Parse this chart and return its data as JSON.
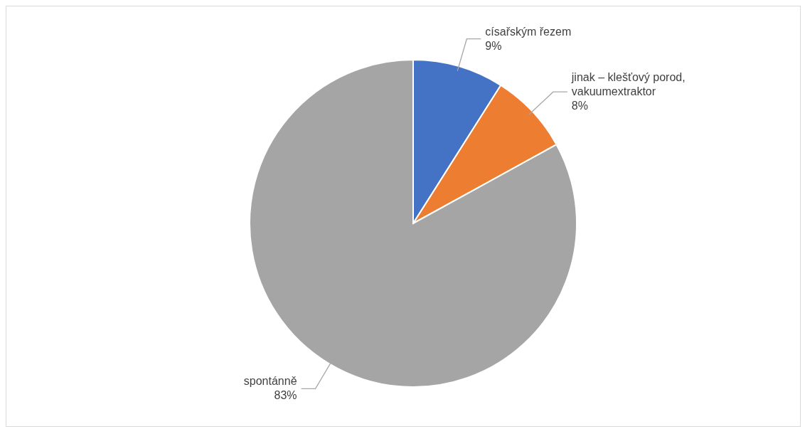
{
  "chart_data": {
    "type": "pie",
    "categories": [
      "císařským řezem",
      "jinak – klešťový porod, vakuumextraktor",
      "spontánně"
    ],
    "values": [
      9,
      8,
      83
    ],
    "colors": [
      "#4472c4",
      "#ed7d31",
      "#a5a5a5"
    ],
    "value_labels": [
      "9%",
      "8%",
      "83%"
    ]
  }
}
